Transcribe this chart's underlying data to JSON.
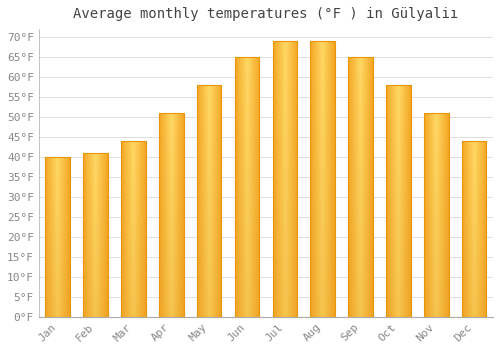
{
  "title": "Average monthly temperatures (°F ) in Gülyaliı",
  "months": [
    "Jan",
    "Feb",
    "Mar",
    "Apr",
    "May",
    "Jun",
    "Jul",
    "Aug",
    "Sep",
    "Oct",
    "Nov",
    "Dec"
  ],
  "values": [
    40,
    41,
    44,
    51,
    58,
    65,
    69,
    69,
    65,
    58,
    51,
    44
  ],
  "bar_color_center": "#FFD966",
  "bar_color_edge": "#F5A623",
  "bar_border_color": "#E8950A",
  "background_color": "#ffffff",
  "grid_color": "#e0e0e0",
  "tick_label_color": "#888888",
  "title_color": "#444444",
  "ylim": [
    0,
    72
  ],
  "yticks": [
    0,
    5,
    10,
    15,
    20,
    25,
    30,
    35,
    40,
    45,
    50,
    55,
    60,
    65,
    70
  ],
  "ytick_labels": [
    "0°F",
    "5°F",
    "10°F",
    "15°F",
    "20°F",
    "25°F",
    "30°F",
    "35°F",
    "40°F",
    "45°F",
    "50°F",
    "55°F",
    "60°F",
    "65°F",
    "70°F"
  ],
  "title_fontsize": 10,
  "tick_fontsize": 8,
  "figsize": [
    5.0,
    3.5
  ],
  "dpi": 100,
  "bar_width": 0.65
}
